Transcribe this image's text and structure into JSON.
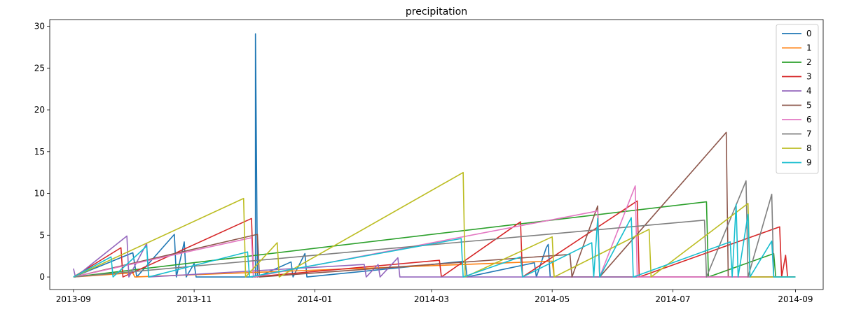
{
  "chart_data": {
    "type": "line",
    "title": "precipitation",
    "xlabel": "",
    "ylabel": "",
    "x_range": [
      "2013-08-20",
      "2014-09-15"
    ],
    "ylim": [
      -1.5,
      30.8
    ],
    "x_ticks": [
      "2013-09",
      "2013-11",
      "2014-01",
      "2014-03",
      "2014-05",
      "2014-07",
      "2014-09"
    ],
    "y_ticks": [
      0,
      5,
      10,
      15,
      20,
      25,
      30
    ],
    "grid": false,
    "legend_position": "top-right",
    "colors": [
      "#1f77b4",
      "#ff7f0e",
      "#2ca02c",
      "#d62728",
      "#9467bd",
      "#8c564b",
      "#e377c2",
      "#7f7f7f",
      "#bcbd22",
      "#17becf"
    ],
    "series": [
      {
        "name": "0",
        "points": [
          [
            "2013-09-01",
            0
          ],
          [
            "2013-10-01",
            2.9
          ],
          [
            "2013-10-03",
            0
          ],
          [
            "2013-10-22",
            5.1
          ],
          [
            "2013-10-23",
            0
          ],
          [
            "2013-10-27",
            4.2
          ],
          [
            "2013-10-28",
            0
          ],
          [
            "2013-11-01",
            1.6
          ],
          [
            "2013-11-02",
            0
          ],
          [
            "2013-12-02",
            0
          ],
          [
            "2013-12-02",
            29.1
          ],
          [
            "2013-12-03",
            0
          ],
          [
            "2013-12-20",
            1.8
          ],
          [
            "2013-12-21",
            0
          ],
          [
            "2013-12-27",
            2.8
          ],
          [
            "2013-12-28",
            0
          ],
          [
            "2014-03-18",
            1.9
          ],
          [
            "2014-03-19",
            0
          ],
          [
            "2014-04-22",
            1.7
          ],
          [
            "2014-04-23",
            0
          ],
          [
            "2014-04-28",
            3.5
          ],
          [
            "2014-04-29",
            3.9
          ],
          [
            "2014-04-30",
            0
          ],
          [
            "2014-09-01",
            0
          ]
        ]
      },
      {
        "name": "1",
        "points": [
          [
            "2013-09-01",
            0
          ],
          [
            "2013-10-01",
            0.5
          ],
          [
            "2013-10-02",
            0
          ],
          [
            "2014-05-01",
            1.9
          ],
          [
            "2014-05-02",
            0
          ],
          [
            "2014-09-01",
            0
          ]
        ]
      },
      {
        "name": "2",
        "points": [
          [
            "2013-09-01",
            0
          ],
          [
            "2014-07-18",
            9.0
          ],
          [
            "2014-07-19",
            0
          ],
          [
            "2014-08-21",
            2.8
          ],
          [
            "2014-08-22",
            0
          ],
          [
            "2014-09-01",
            0
          ]
        ]
      },
      {
        "name": "3",
        "points": [
          [
            "2013-09-01",
            0
          ],
          [
            "2013-09-25",
            3.5
          ],
          [
            "2013-09-26",
            0
          ],
          [
            "2013-11-30",
            7.0
          ],
          [
            "2013-12-01",
            0
          ],
          [
            "2014-03-05",
            2.0
          ],
          [
            "2014-03-06",
            0
          ],
          [
            "2014-04-15",
            6.6
          ],
          [
            "2014-04-16",
            0
          ],
          [
            "2014-06-13",
            9.1
          ],
          [
            "2014-06-14",
            0
          ],
          [
            "2014-08-24",
            6.0
          ],
          [
            "2014-08-25",
            0
          ],
          [
            "2014-08-27",
            2.6
          ],
          [
            "2014-08-28",
            0
          ],
          [
            "2014-09-01",
            0
          ]
        ]
      },
      {
        "name": "4",
        "points": [
          [
            "2013-09-01",
            1.0
          ],
          [
            "2013-09-02",
            0
          ],
          [
            "2013-09-28",
            4.9
          ],
          [
            "2013-09-29",
            0
          ],
          [
            "2013-10-08",
            4.0
          ],
          [
            "2013-10-09",
            0
          ],
          [
            "2014-01-26",
            1.5
          ],
          [
            "2014-01-27",
            0
          ],
          [
            "2014-02-02",
            1.5
          ],
          [
            "2014-02-03",
            0
          ],
          [
            "2014-02-12",
            2.3
          ],
          [
            "2014-02-13",
            0
          ],
          [
            "2014-09-01",
            0
          ]
        ]
      },
      {
        "name": "5",
        "points": [
          [
            "2013-09-01",
            0
          ],
          [
            "2013-12-03",
            5.1
          ],
          [
            "2013-12-04",
            0
          ],
          [
            "2014-05-10",
            2.7
          ],
          [
            "2014-05-11",
            0
          ],
          [
            "2014-05-24",
            8.5
          ],
          [
            "2014-05-25",
            0
          ],
          [
            "2014-07-28",
            17.3
          ],
          [
            "2014-07-29",
            0
          ],
          [
            "2014-09-01",
            0
          ]
        ]
      },
      {
        "name": "6",
        "points": [
          [
            "2013-09-01",
            0
          ],
          [
            "2013-11-30",
            4.7
          ],
          [
            "2013-12-01",
            0
          ],
          [
            "2014-05-24",
            7.9
          ],
          [
            "2014-05-25",
            0
          ],
          [
            "2014-06-12",
            10.9
          ],
          [
            "2014-06-13",
            0
          ],
          [
            "2014-09-01",
            0
          ]
        ]
      },
      {
        "name": "7",
        "points": [
          [
            "2013-09-01",
            0
          ],
          [
            "2014-07-17",
            6.8
          ],
          [
            "2014-07-18",
            0
          ],
          [
            "2014-08-07",
            11.5
          ],
          [
            "2014-08-08",
            0
          ],
          [
            "2014-08-20",
            9.9
          ],
          [
            "2014-08-21",
            0
          ],
          [
            "2014-09-01",
            0
          ]
        ]
      },
      {
        "name": "8",
        "points": [
          [
            "2013-09-01",
            0
          ],
          [
            "2013-11-26",
            9.4
          ],
          [
            "2013-11-27",
            0
          ],
          [
            "2013-12-13",
            4.1
          ],
          [
            "2013-12-14",
            0
          ],
          [
            "2014-03-17",
            12.5
          ],
          [
            "2014-03-18",
            0
          ],
          [
            "2014-05-01",
            4.8
          ],
          [
            "2014-05-02",
            0
          ],
          [
            "2014-06-19",
            5.7
          ],
          [
            "2014-06-20",
            0
          ],
          [
            "2014-08-08",
            8.8
          ],
          [
            "2014-08-09",
            0
          ],
          [
            "2014-09-01",
            0
          ]
        ]
      },
      {
        "name": "9",
        "points": [
          [
            "2013-09-01",
            0
          ],
          [
            "2013-09-20",
            2.4
          ],
          [
            "2013-09-21",
            0
          ],
          [
            "2013-10-08",
            3.7
          ],
          [
            "2013-10-09",
            0
          ],
          [
            "2013-11-28",
            3.0
          ],
          [
            "2013-11-29",
            0
          ],
          [
            "2014-03-16",
            4.6
          ],
          [
            "2014-03-17",
            0
          ],
          [
            "2014-04-15",
            2.4
          ],
          [
            "2014-04-16",
            0
          ],
          [
            "2014-05-21",
            4.1
          ],
          [
            "2014-05-22",
            0
          ],
          [
            "2014-05-24",
            7.0
          ],
          [
            "2014-05-25",
            0
          ],
          [
            "2014-06-10",
            7.1
          ],
          [
            "2014-06-11",
            0
          ],
          [
            "2014-07-30",
            4.2
          ],
          [
            "2014-07-31",
            0
          ],
          [
            "2014-08-02",
            8.7
          ],
          [
            "2014-08-03",
            0
          ],
          [
            "2014-08-08",
            7.5
          ],
          [
            "2014-08-09",
            0
          ],
          [
            "2014-08-20",
            4.3
          ],
          [
            "2014-08-21",
            0
          ],
          [
            "2014-09-01",
            0
          ]
        ]
      }
    ]
  }
}
